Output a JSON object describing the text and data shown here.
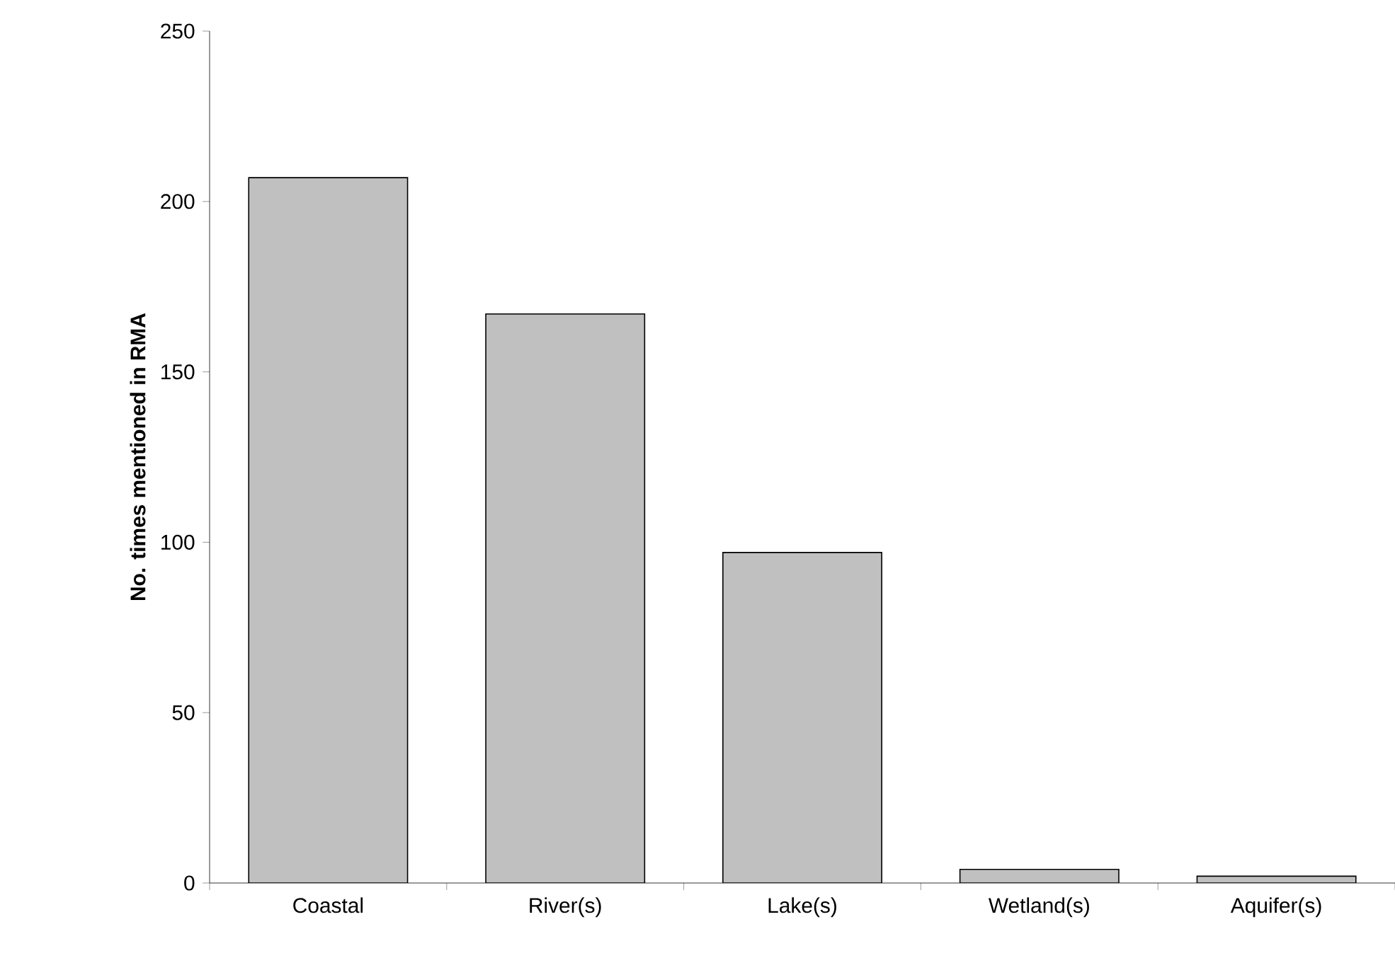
{
  "chart_data": {
    "type": "bar",
    "ylabel": "No. times mentioned in RMA",
    "categories": [
      "Coastal",
      "River(s)",
      "Lake(s)",
      "Wetland(s)",
      "Aquifer(s)"
    ],
    "values": [
      207,
      167,
      97,
      4,
      2
    ],
    "color": "#c0c0c0",
    "ylim": [
      0,
      250
    ],
    "yticks": [
      0,
      50,
      100,
      150,
      200,
      250
    ],
    "grid": false
  }
}
